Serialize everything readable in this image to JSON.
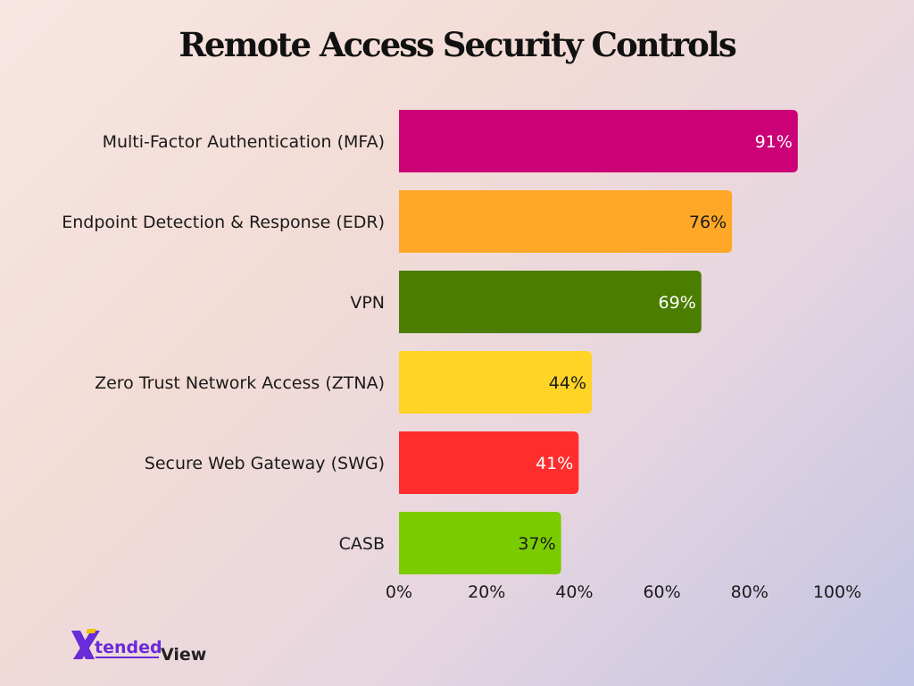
{
  "chart_data": {
    "type": "bar",
    "orientation": "horizontal",
    "title": "Remote Access Security Controls",
    "categories": [
      "Multi-Factor Authentication (MFA)",
      "Endpoint Detection & Response (EDR)",
      "VPN",
      "Zero Trust Network Access (ZTNA)",
      "Secure Web Gateway (SWG)",
      "CASB"
    ],
    "values": [
      91,
      76,
      69,
      44,
      41,
      37
    ],
    "value_labels": [
      "91%",
      "76%",
      "69%",
      "44%",
      "41%",
      "37%"
    ],
    "colors": [
      "#cc0077",
      "#ffa726",
      "#4a7d00",
      "#ffd426",
      "#ff2d2d",
      "#7acc00"
    ],
    "value_label_colors": [
      "#ffffff",
      "#1a1a1a",
      "#ffffff",
      "#1a1a1a",
      "#ffffff",
      "#1a1a1a"
    ],
    "xlim": [
      0,
      100
    ],
    "xticks": [
      0,
      20,
      40,
      60,
      80,
      100
    ],
    "xtick_labels": [
      "0%",
      "20%",
      "40%",
      "60%",
      "80%",
      "100%"
    ],
    "xlabel": "",
    "ylabel": "",
    "grid": false,
    "legend": "none"
  },
  "branding": {
    "logo_mark": "X",
    "logo_text_1": "tended",
    "logo_text_2": "View"
  }
}
